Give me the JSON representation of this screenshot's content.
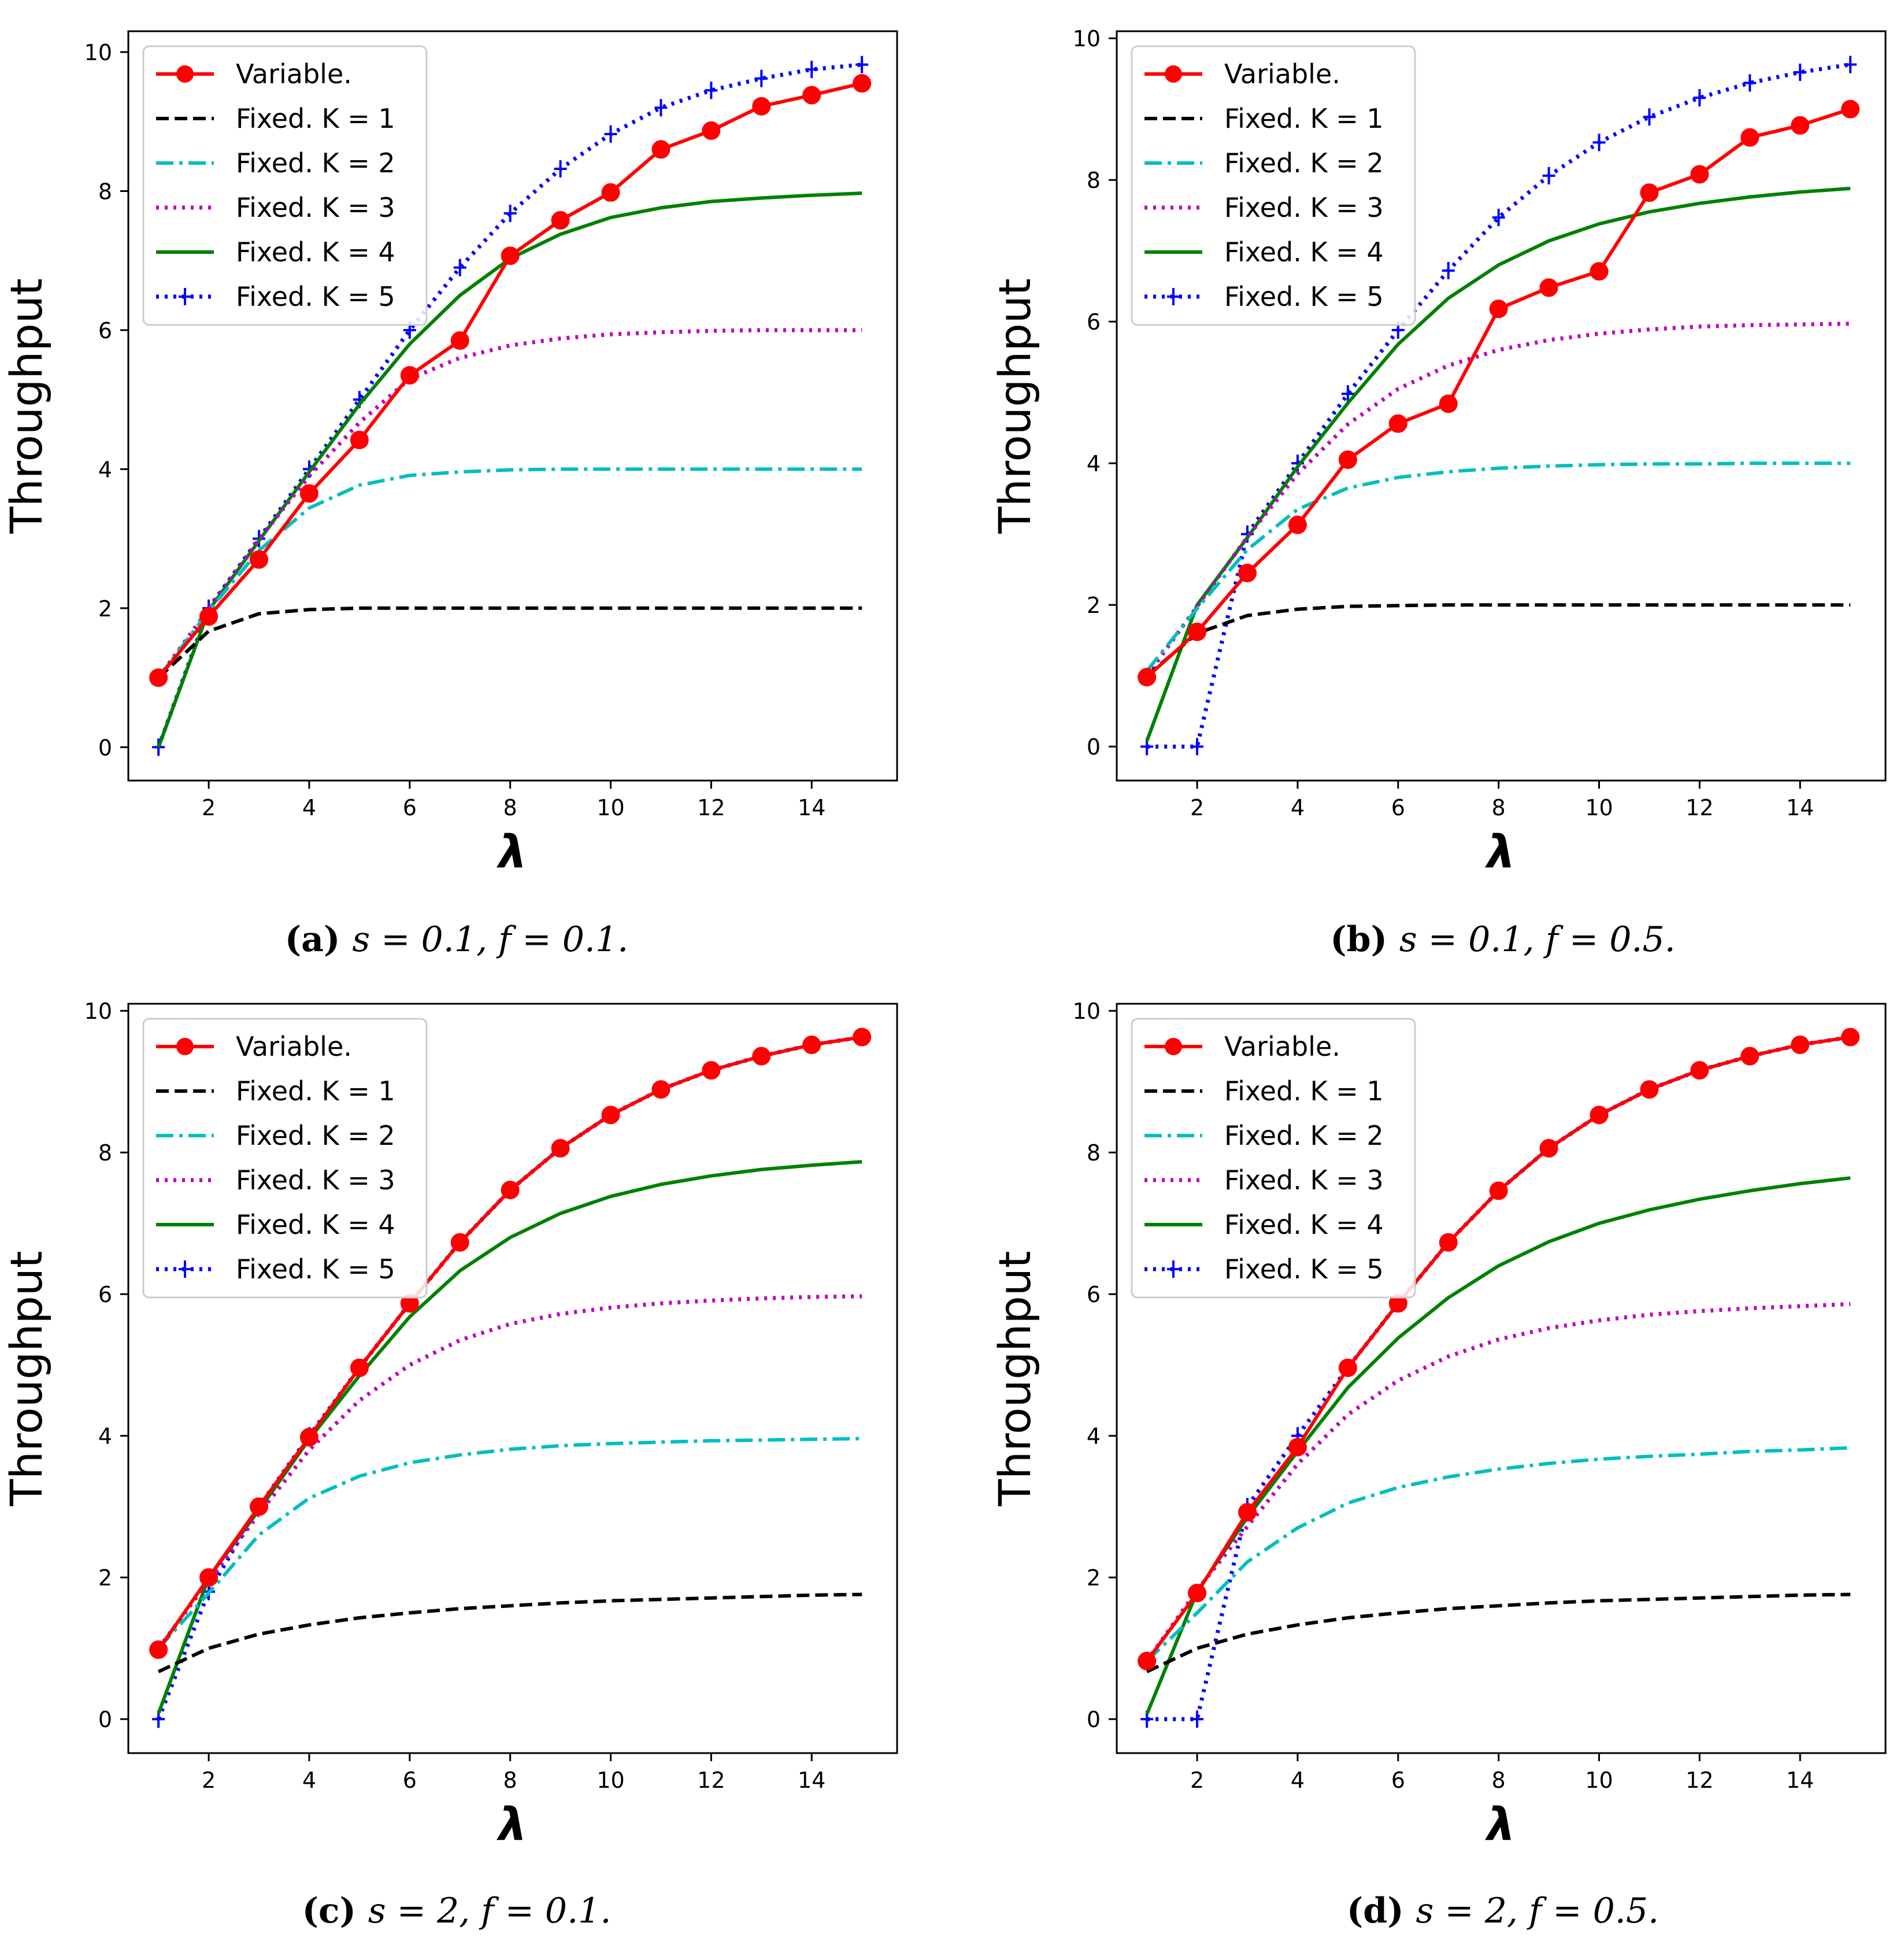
{
  "chart_data": [
    {
      "type": "line",
      "caption": {
        "tag": "(a)",
        "text": "s = 0.1, f = 0.1."
      },
      "xlabel": "λ",
      "ylabel": "Throughput",
      "xlim": [
        0.4,
        15.7
      ],
      "ylim": [
        -0.48,
        10.3
      ],
      "xticks": [
        2,
        4,
        6,
        8,
        10,
        12,
        14
      ],
      "yticks": [
        0,
        2,
        4,
        6,
        8,
        10
      ],
      "legend": "top-left",
      "x": [
        1,
        2,
        3,
        4,
        5,
        6,
        7,
        8,
        9,
        10,
        11,
        12,
        13,
        14,
        15
      ],
      "series": [
        {
          "name": "Variable.",
          "style": "variable",
          "values": [
            1.0,
            1.88,
            2.7,
            3.65,
            4.42,
            5.35,
            5.85,
            7.07,
            7.58,
            7.98,
            8.6,
            8.87,
            9.22,
            9.38,
            9.55
          ]
        },
        {
          "name": "Fixed. K = 1",
          "style": "k1",
          "values": [
            1.0,
            1.67,
            1.92,
            1.98,
            2.0,
            2.0,
            2.0,
            2.0,
            2.0,
            2.0,
            2.0,
            2.0,
            2.0,
            2.0,
            2.0
          ]
        },
        {
          "name": "Fixed. K = 2",
          "style": "k2",
          "values": [
            1.0,
            1.96,
            2.83,
            3.44,
            3.77,
            3.91,
            3.96,
            3.99,
            4.0,
            4.0,
            4.0,
            4.0,
            4.0,
            4.0,
            4.0
          ]
        },
        {
          "name": "Fixed. K = 3",
          "style": "k3",
          "values": [
            1.0,
            1.99,
            2.99,
            3.9,
            4.67,
            5.3,
            5.6,
            5.78,
            5.88,
            5.94,
            5.97,
            5.99,
            6.0,
            6.0,
            6.0
          ]
        },
        {
          "name": "Fixed. K = 4",
          "style": "k4",
          "values": [
            0.0,
            1.97,
            2.97,
            3.96,
            4.93,
            5.8,
            6.5,
            7.03,
            7.38,
            7.62,
            7.76,
            7.85,
            7.9,
            7.94,
            7.97
          ]
        },
        {
          "name": "Fixed. K = 5",
          "style": "k5",
          "values": [
            0.0,
            2.0,
            3.0,
            4.0,
            5.0,
            6.0,
            6.9,
            7.68,
            8.32,
            8.82,
            9.2,
            9.45,
            9.62,
            9.75,
            9.82
          ]
        }
      ]
    },
    {
      "type": "line",
      "caption": {
        "tag": "(b)",
        "text": "s = 0.1, f = 0.5."
      },
      "xlabel": "λ",
      "ylabel": "Throughput",
      "xlim": [
        0.4,
        15.7
      ],
      "ylim": [
        -0.48,
        10.1
      ],
      "xticks": [
        2,
        4,
        6,
        8,
        10,
        12,
        14
      ],
      "yticks": [
        0,
        2,
        4,
        6,
        8,
        10
      ],
      "legend": "top-left",
      "x": [
        1,
        2,
        3,
        4,
        5,
        6,
        7,
        8,
        9,
        10,
        11,
        12,
        13,
        14,
        15
      ],
      "series": [
        {
          "name": "Variable.",
          "style": "variable",
          "values": [
            0.98,
            1.62,
            2.45,
            3.13,
            4.05,
            4.56,
            4.84,
            6.18,
            6.48,
            6.71,
            7.82,
            8.08,
            8.6,
            8.77,
            9.0
          ]
        },
        {
          "name": "Fixed. K = 1",
          "style": "k1",
          "values": [
            1.0,
            1.6,
            1.85,
            1.94,
            1.98,
            1.99,
            2.0,
            2.0,
            2.0,
            2.0,
            2.0,
            2.0,
            2.0,
            2.0,
            2.0
          ]
        },
        {
          "name": "Fixed. K = 2",
          "style": "k2",
          "values": [
            1.07,
            1.95,
            2.78,
            3.35,
            3.65,
            3.8,
            3.88,
            3.93,
            3.96,
            3.98,
            3.99,
            3.99,
            4.0,
            4.0,
            4.0
          ]
        },
        {
          "name": "Fixed. K = 3",
          "style": "k3",
          "values": [
            1.0,
            1.98,
            2.96,
            3.85,
            4.55,
            5.05,
            5.38,
            5.6,
            5.74,
            5.83,
            5.89,
            5.93,
            5.95,
            5.96,
            5.97
          ]
        },
        {
          "name": "Fixed. K = 4",
          "style": "k4",
          "values": [
            0.08,
            2.0,
            2.95,
            3.95,
            4.85,
            5.68,
            6.33,
            6.8,
            7.14,
            7.38,
            7.55,
            7.67,
            7.76,
            7.83,
            7.88
          ]
        },
        {
          "name": "Fixed. K = 5",
          "style": "k5",
          "values": [
            0.0,
            0.0,
            3.0,
            4.0,
            4.98,
            5.88,
            6.72,
            7.47,
            8.06,
            8.53,
            8.89,
            9.16,
            9.37,
            9.52,
            9.63
          ]
        }
      ]
    },
    {
      "type": "line",
      "caption": {
        "tag": "(c)",
        "text": "s = 2, f = 0.1."
      },
      "xlabel": "λ",
      "ylabel": "Throughput",
      "xlim": [
        0.4,
        15.7
      ],
      "ylim": [
        -0.48,
        10.1
      ],
      "xticks": [
        2,
        4,
        6,
        8,
        10,
        12,
        14
      ],
      "yticks": [
        0,
        2,
        4,
        6,
        8,
        10
      ],
      "legend": "top-left",
      "x": [
        1,
        2,
        3,
        4,
        5,
        6,
        7,
        8,
        9,
        10,
        11,
        12,
        13,
        14,
        15
      ],
      "series": [
        {
          "name": "Variable.",
          "style": "variable",
          "values": [
            0.98,
            2.0,
            3.0,
            3.98,
            4.96,
            5.87,
            6.73,
            7.47,
            8.06,
            8.53,
            8.89,
            9.16,
            9.36,
            9.52,
            9.63
          ]
        },
        {
          "name": "Fixed. K = 1",
          "style": "k1",
          "values": [
            0.67,
            1.0,
            1.2,
            1.33,
            1.43,
            1.5,
            1.56,
            1.6,
            1.64,
            1.67,
            1.69,
            1.71,
            1.73,
            1.75,
            1.76
          ]
        },
        {
          "name": "Fixed. K = 2",
          "style": "k2",
          "values": [
            1.0,
            1.78,
            2.6,
            3.12,
            3.43,
            3.62,
            3.73,
            3.81,
            3.86,
            3.89,
            3.91,
            3.93,
            3.94,
            3.95,
            3.96
          ]
        },
        {
          "name": "Fixed. K = 3",
          "style": "k3",
          "values": [
            1.0,
            1.95,
            2.9,
            3.8,
            4.5,
            5.0,
            5.35,
            5.58,
            5.72,
            5.81,
            5.87,
            5.91,
            5.94,
            5.96,
            5.97
          ]
        },
        {
          "name": "Fixed. K = 4",
          "style": "k4",
          "values": [
            0.08,
            2.0,
            2.95,
            3.95,
            4.85,
            5.68,
            6.33,
            6.8,
            7.14,
            7.38,
            7.55,
            7.67,
            7.76,
            7.82,
            7.87
          ]
        },
        {
          "name": "Fixed. K = 5",
          "style": "k5",
          "values": [
            0.0,
            1.8,
            3.0,
            4.0,
            4.96,
            5.87,
            6.73,
            7.47,
            8.06,
            8.53,
            8.89,
            9.16,
            9.36,
            9.52,
            9.63
          ]
        }
      ]
    },
    {
      "type": "line",
      "caption": {
        "tag": "(d)",
        "text": "s = 2, f = 0.5."
      },
      "xlabel": "λ",
      "ylabel": "Throughput",
      "xlim": [
        0.4,
        15.7
      ],
      "ylim": [
        -0.48,
        10.1
      ],
      "xticks": [
        2,
        4,
        6,
        8,
        10,
        12,
        14
      ],
      "yticks": [
        0,
        2,
        4,
        6,
        8,
        10
      ],
      "legend": "top-left",
      "x": [
        1,
        2,
        3,
        4,
        5,
        6,
        7,
        8,
        9,
        10,
        11,
        12,
        13,
        14,
        15
      ],
      "series": [
        {
          "name": "Variable.",
          "style": "variable",
          "values": [
            0.82,
            1.78,
            2.92,
            3.84,
            4.96,
            5.87,
            6.73,
            7.46,
            8.06,
            8.53,
            8.89,
            9.16,
            9.36,
            9.52,
            9.63
          ]
        },
        {
          "name": "Fixed. K = 1",
          "style": "k1",
          "values": [
            0.67,
            1.0,
            1.2,
            1.33,
            1.43,
            1.5,
            1.56,
            1.6,
            1.64,
            1.67,
            1.69,
            1.71,
            1.73,
            1.75,
            1.76
          ]
        },
        {
          "name": "Fixed. K = 2",
          "style": "k2",
          "values": [
            0.82,
            1.5,
            2.22,
            2.7,
            3.05,
            3.27,
            3.42,
            3.53,
            3.61,
            3.67,
            3.71,
            3.74,
            3.78,
            3.8,
            3.83
          ]
        },
        {
          "name": "Fixed. K = 3",
          "style": "k3",
          "values": [
            0.82,
            1.82,
            2.72,
            3.6,
            4.3,
            4.78,
            5.12,
            5.36,
            5.52,
            5.63,
            5.71,
            5.76,
            5.8,
            5.83,
            5.86
          ]
        },
        {
          "name": "Fixed. K = 4",
          "style": "k4",
          "values": [
            0.07,
            1.8,
            2.85,
            3.78,
            4.68,
            5.38,
            5.95,
            6.4,
            6.74,
            7.0,
            7.19,
            7.34,
            7.46,
            7.56,
            7.64
          ]
        },
        {
          "name": "Fixed. K = 5",
          "style": "k5",
          "values": [
            0.0,
            0.0,
            3.0,
            4.0,
            4.96,
            5.87,
            6.73,
            7.46,
            8.06,
            8.53,
            8.89,
            9.16,
            9.36,
            9.52,
            9.63
          ]
        }
      ]
    }
  ],
  "styles": {
    "variable": {
      "color": "#ff0000"
    },
    "k1": {
      "color": "#000000"
    },
    "k2": {
      "color": "#00bfbf"
    },
    "k3": {
      "color": "#bf00bf"
    },
    "k4": {
      "color": "#008000"
    },
    "k5": {
      "color": "#0000ff"
    }
  }
}
